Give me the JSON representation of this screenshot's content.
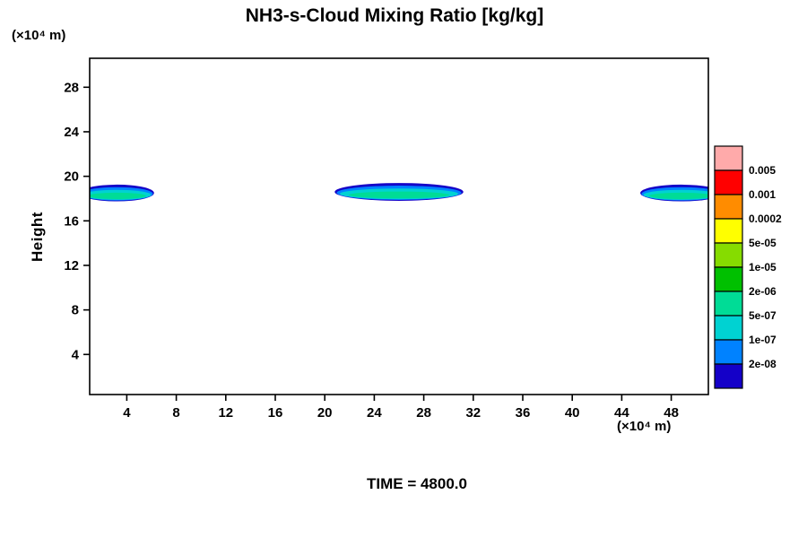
{
  "chart_data": {
    "type": "heatmap",
    "title": "NH3-s-Cloud Mixing Ratio [kg/kg]",
    "ylabel": "Height",
    "y_axis_unit": "(×10⁴ m)",
    "x_axis_unit": "(×10⁴ m)",
    "time_label": "TIME = 4800.0",
    "x_ticks": [
      4,
      8,
      12,
      16,
      20,
      24,
      28,
      32,
      36,
      40,
      44,
      48
    ],
    "y_ticks": [
      4,
      8,
      12,
      16,
      20,
      24,
      28
    ],
    "x_range": [
      1,
      51
    ],
    "y_range": [
      0.4,
      30.6
    ],
    "grid": false,
    "legend_position": "right",
    "colorbar": {
      "boundary_labels": [
        "0.005",
        "0.001",
        "0.0002",
        "5e-05",
        "1e-05",
        "2e-06",
        "5e-07",
        "1e-07",
        "2e-08"
      ],
      "cell_colors_top_to_bottom": [
        "#ffaaaa",
        "#ff0000",
        "#ff8c00",
        "#ffff00",
        "#86dc00",
        "#00c000",
        "#00dc96",
        "#00d2d2",
        "#0082ff",
        "#1400c8"
      ]
    },
    "clouds": [
      {
        "cx": 3.2,
        "cy": 18.5,
        "rx": 3.0,
        "ry": 0.75
      },
      {
        "cx": 26.0,
        "cy": 18.6,
        "rx": 5.2,
        "ry": 0.8
      },
      {
        "cx": 48.8,
        "cy": 18.5,
        "rx": 3.3,
        "ry": 0.75
      }
    ],
    "cloud_layers": [
      {
        "color_index": 9,
        "sx": 1.0,
        "sy": 1.0,
        "dy": 0.0
      },
      {
        "color_index": 8,
        "sx": 0.97,
        "sy": 0.8,
        "dy": 0.1
      },
      {
        "color_index": 7,
        "sx": 0.92,
        "sy": 0.6,
        "dy": 0.22
      },
      {
        "color_index": 6,
        "sx": 0.78,
        "sy": 0.38,
        "dy": 0.34
      }
    ],
    "frame_color": "#000000",
    "background": "#ffffff"
  }
}
